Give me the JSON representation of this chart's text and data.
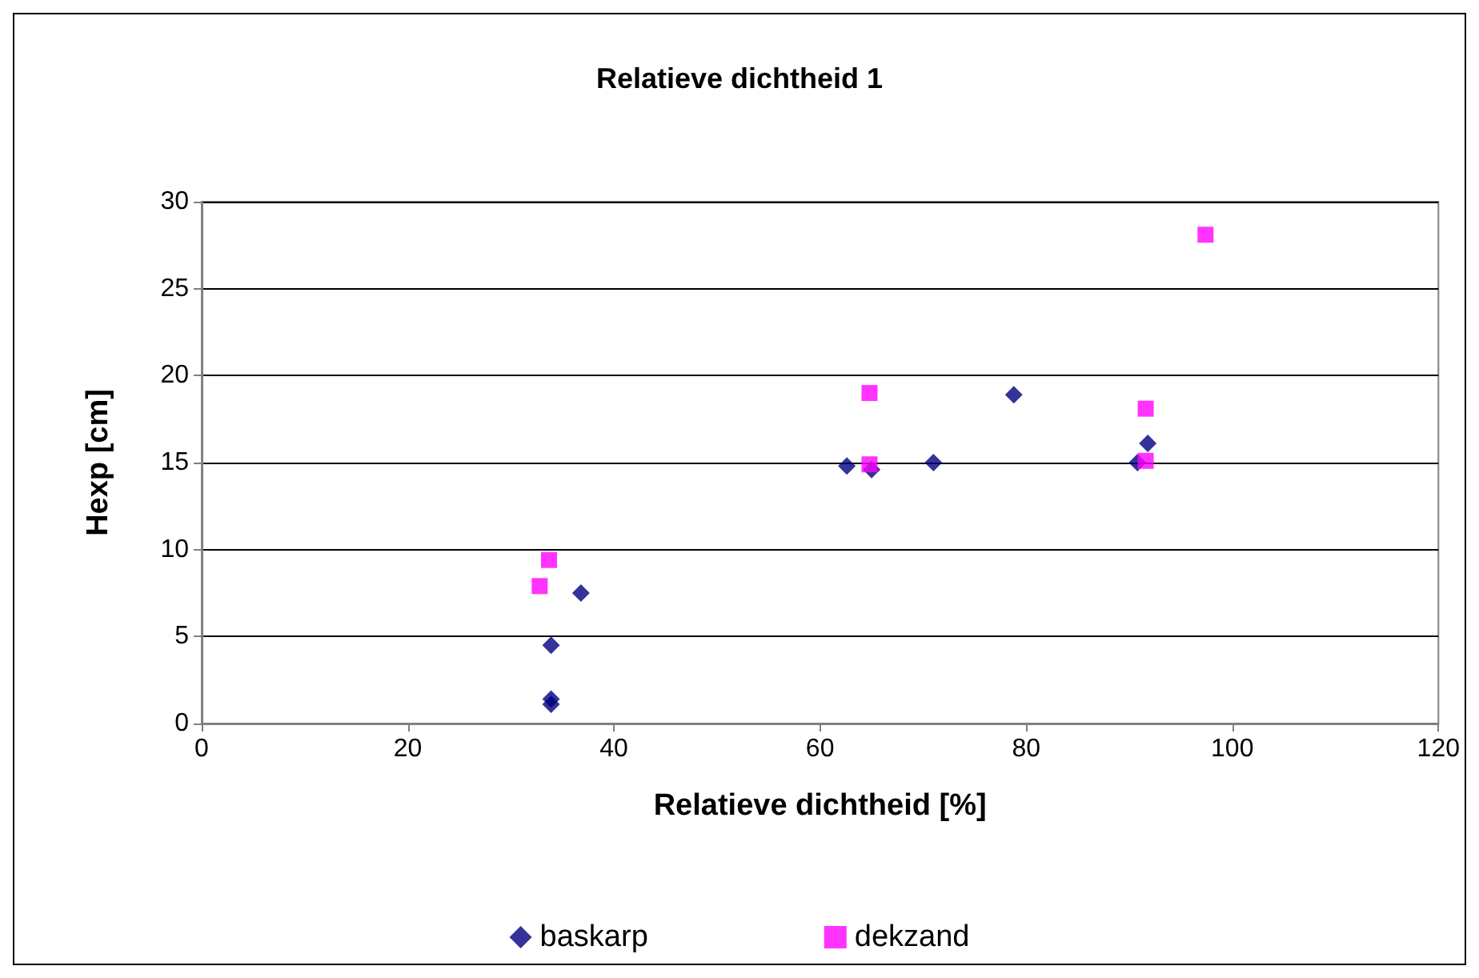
{
  "chart_data": {
    "type": "scatter",
    "title": "Relatieve dichtheid 1",
    "xlabel": "Relatieve dichtheid [%]",
    "ylabel": "Hexp [cm]",
    "xlim": [
      0,
      120
    ],
    "xticks": [
      0,
      20,
      40,
      60,
      80,
      100,
      120
    ],
    "ylim": [
      0,
      30
    ],
    "yticks": [
      0,
      5,
      10,
      15,
      20,
      25,
      30
    ],
    "grid": "y",
    "legend": "bottom",
    "series": [
      {
        "name": "baskarp",
        "color": "#000080",
        "marker": "diamond",
        "x": [
          33.9,
          33.9,
          33.9,
          36.8,
          62.6,
          65,
          71,
          78.8,
          90.8,
          91.8
        ],
        "values": [
          1.1,
          1.4,
          4.5,
          7.5,
          14.8,
          14.6,
          15,
          18.9,
          15,
          16.1
        ]
      },
      {
        "name": "dekzand",
        "color": "#ff00ff",
        "marker": "square",
        "x": [
          32.8,
          33.7,
          64.8,
          64.8,
          91.6,
          91.6,
          97.4
        ],
        "values": [
          7.9,
          9.4,
          19,
          14.9,
          18.1,
          15.1,
          28.1
        ]
      }
    ]
  }
}
